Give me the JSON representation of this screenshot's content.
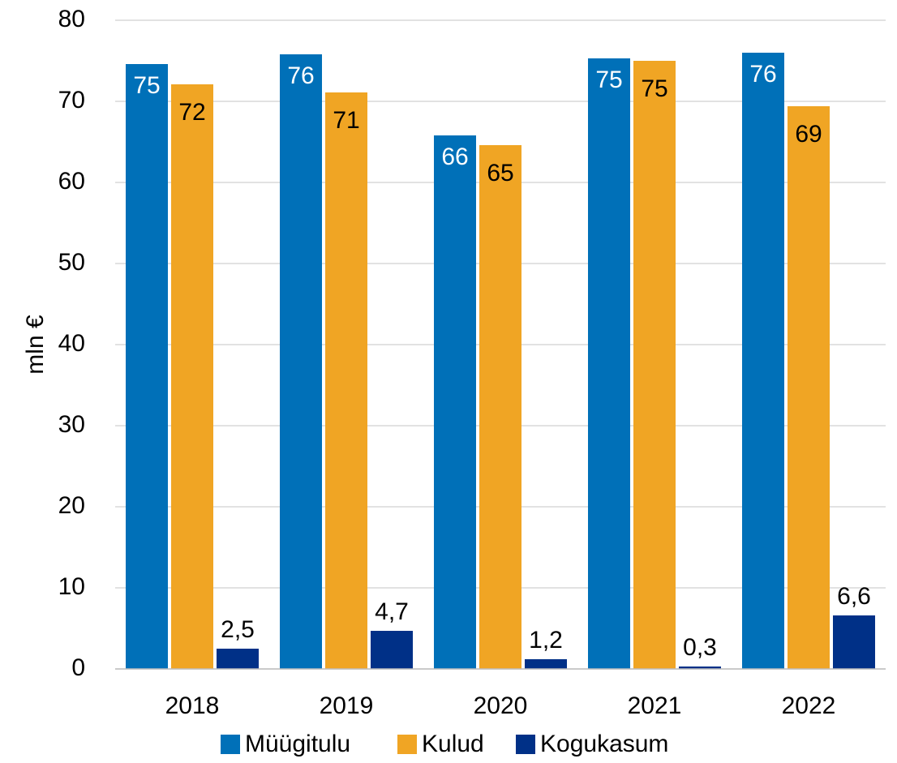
{
  "chart_data": {
    "type": "bar",
    "y_label": "mln €",
    "categories": [
      "2018",
      "2019",
      "2020",
      "2021",
      "2022"
    ],
    "series": [
      {
        "name": "Müügitulu",
        "color": "#0070b8",
        "values": [
          74.6,
          75.8,
          65.8,
          75.3,
          76.0
        ],
        "value_labels": [
          "75",
          "76",
          "66",
          "75",
          "76"
        ]
      },
      {
        "name": "Kulud",
        "color": "#f0a524",
        "values": [
          72.1,
          71.1,
          64.6,
          75.0,
          69.4
        ],
        "value_labels": [
          "72",
          "71",
          "65",
          "75",
          "69"
        ]
      },
      {
        "name": "Kogukasum",
        "color": "#003087",
        "values": [
          2.5,
          4.7,
          1.2,
          0.3,
          6.6
        ],
        "value_labels": [
          "2,5",
          "4,7",
          "1,2",
          "0,3",
          "6,6"
        ]
      }
    ],
    "ylim": [
      0,
      80
    ],
    "yticks": [
      0,
      10,
      20,
      30,
      40,
      50,
      60,
      70,
      80
    ],
    "grid": true,
    "legend": "bottom"
  }
}
